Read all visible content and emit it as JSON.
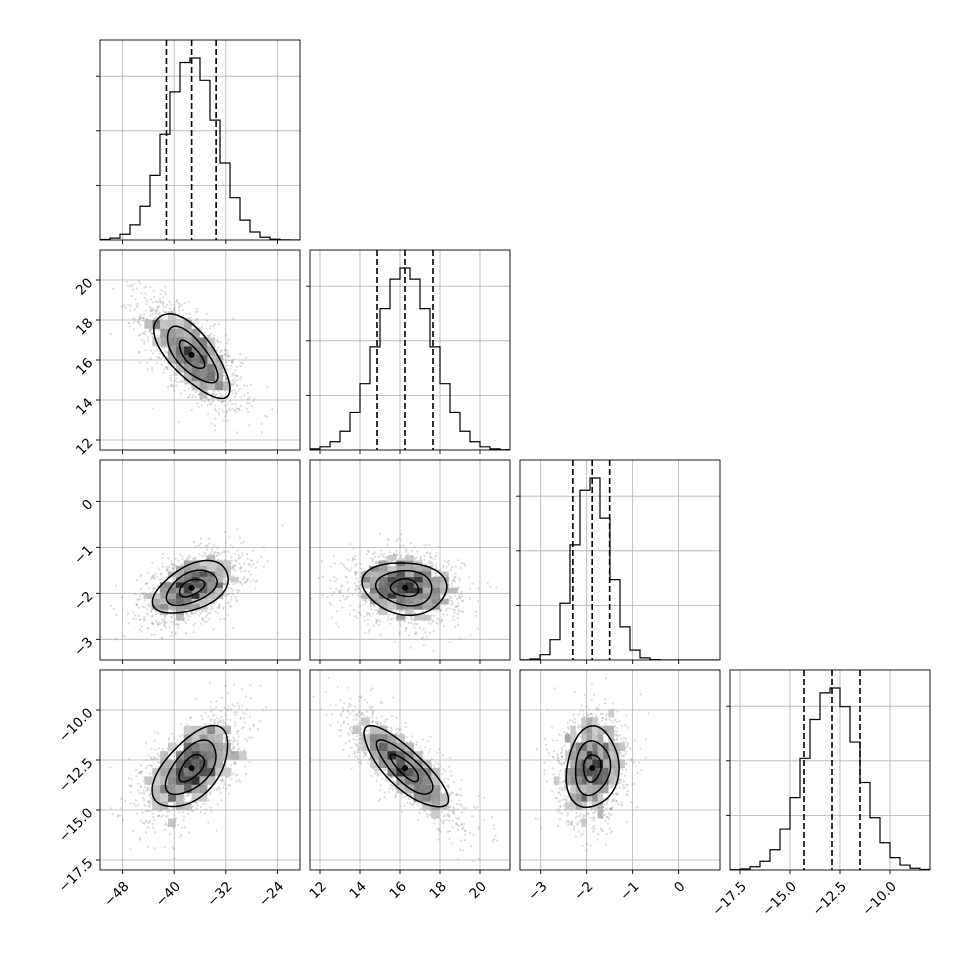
{
  "chart_data": {
    "type": "corner",
    "params": [
      {
        "name": "",
        "range": [
          -51.5,
          -20.5
        ],
        "ticks": [
          -48,
          -40,
          -32,
          -24
        ],
        "tick_labels": [
          "−48",
          "−40",
          "−32",
          "−24"
        ],
        "mean": -37.3,
        "sd": 3.9,
        "quantiles": [
          -41.2,
          -37.3,
          -33.5
        ]
      },
      {
        "name": "",
        "range": [
          11.5,
          21.5
        ],
        "ticks": [
          12,
          14,
          16,
          18,
          20
        ],
        "tick_labels": [
          "12",
          "14",
          "16",
          "18",
          "20"
        ],
        "mean": 16.25,
        "sd": 1.4,
        "quantiles": [
          14.85,
          16.25,
          17.65
        ]
      },
      {
        "name": "",
        "range": [
          -3.45,
          0.9
        ],
        "ticks": [
          -3,
          -2,
          -1,
          0
        ],
        "tick_labels": [
          "−3",
          "−2",
          "−1",
          "0"
        ],
        "mean": -1.88,
        "sd": 0.38,
        "quantiles": [
          -2.3,
          -1.88,
          -1.5
        ]
      },
      {
        "name": "",
        "range": [
          -18.0,
          -8.0
        ],
        "ticks": [
          -17.5,
          -15.0,
          -12.5,
          -10.0
        ],
        "tick_labels": [
          "−17.5",
          "−15.0",
          "−12.5",
          "−10.0"
        ],
        "mean": -12.9,
        "sd": 1.35,
        "quantiles": [
          -14.3,
          -12.9,
          -11.5
        ]
      }
    ],
    "correlation": [
      [
        1.0,
        -0.7,
        0.45,
        0.55
      ],
      [
        -0.7,
        1.0,
        -0.1,
        -0.8
      ],
      [
        0.45,
        -0.1,
        1.0,
        0.1
      ],
      [
        0.55,
        -0.8,
        0.1,
        1.0
      ]
    ],
    "histogram_bins": 20,
    "contour_levels": [
      0.5,
      1.0,
      1.5
    ],
    "grid": true,
    "quantile_lines": "dashed",
    "colors": {
      "line": "#000000",
      "points": "#808080",
      "grid": "#b0b0b0"
    }
  }
}
